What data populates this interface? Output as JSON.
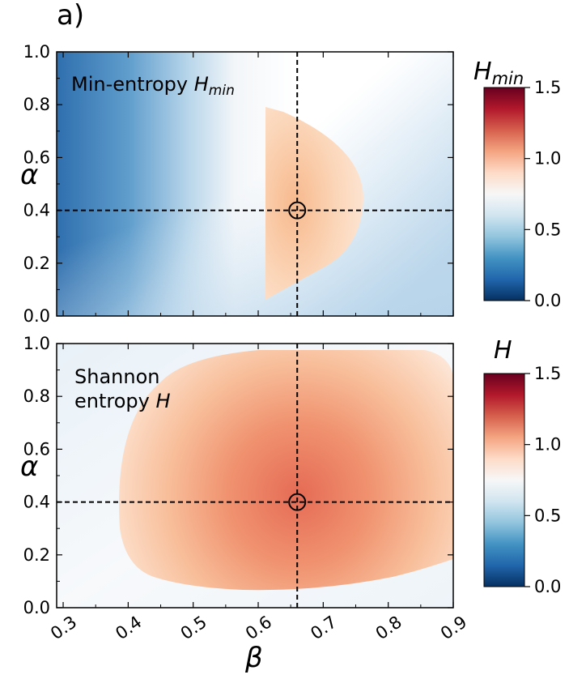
{
  "panel_label": "a)",
  "chart_data": [
    {
      "type": "heatmap",
      "title": "Min-entropy Hmin",
      "annotation": {
        "text": "Min-entropy ",
        "symbol": "H",
        "subscript": "min"
      },
      "xlabel": "β",
      "ylabel": "α",
      "xlim": [
        0.29,
        0.9
      ],
      "ylim": [
        0.0,
        1.0
      ],
      "xticks": [
        0.3,
        0.4,
        0.5,
        0.6,
        0.7,
        0.8,
        0.9
      ],
      "xtick_labels": [
        "0.3",
        "0.4",
        "0.5",
        "0.6",
        "0.7",
        "0.8",
        "0.9"
      ],
      "yticks": [
        0.0,
        0.2,
        0.4,
        0.6,
        0.8,
        1.0
      ],
      "ytick_labels": [
        "0.0",
        "0.2",
        "0.4",
        "0.6",
        "0.8",
        "1.0"
      ],
      "xtick_labels_visible": false,
      "crosshair": {
        "beta": 0.66,
        "alpha": 0.4
      },
      "colormap": "RdBu_r",
      "colorbar": {
        "title": {
          "symbol": "H",
          "subscript": "min"
        },
        "range": [
          0.0,
          1.5
        ],
        "ticks": [
          0.0,
          0.5,
          1.0,
          1.5
        ],
        "tick_labels": [
          "0.0",
          "0.5",
          "1.0",
          "1.5"
        ]
      },
      "value_summary": "Values below 1.0 (blue, min about 0.2 at beta=0.3) except a half-disc region beta 0.61-0.76, alpha 0.05-0.78 with values about 1.1; zero-ish near edges"
    },
    {
      "type": "heatmap",
      "title": "Shannon entropy H",
      "annotation": {
        "line1": "Shannon",
        "line2": "entropy ",
        "symbol": "H"
      },
      "xlabel": "β",
      "ylabel": "α",
      "xlim": [
        0.29,
        0.9
      ],
      "ylim": [
        0.0,
        1.0
      ],
      "xticks": [
        0.3,
        0.4,
        0.5,
        0.6,
        0.7,
        0.8,
        0.9
      ],
      "xtick_labels": [
        "0.3",
        "0.4",
        "0.5",
        "0.6",
        "0.7",
        "0.8",
        "0.9"
      ],
      "yticks": [
        0.0,
        0.2,
        0.4,
        0.6,
        0.8,
        1.0
      ],
      "ytick_labels": [
        "0.0",
        "0.2",
        "0.4",
        "0.6",
        "0.8",
        "1.0"
      ],
      "crosshair": {
        "beta": 0.66,
        "alpha": 0.4
      },
      "colormap": "RdBu_r",
      "colorbar": {
        "title": {
          "symbol": "H"
        },
        "range": [
          0.0,
          1.5
        ],
        "ticks": [
          0.0,
          0.5,
          1.0,
          1.5
        ],
        "tick_labels": [
          "0.0",
          "0.5",
          "1.0",
          "1.5"
        ]
      },
      "value_summary": "Values above 1.0 inside a rounded region beta 0.39-0.9, alpha 0.1-1.0, peaking about 1.35 near beta=0.66, alpha=0.4; below 1.0 near the edges"
    }
  ],
  "colors": {
    "cmap_stops": [
      "#053061",
      "#2166ac",
      "#4393c3",
      "#92c5de",
      "#d1e5f0",
      "#f7f7f7",
      "#fddbc7",
      "#f4a582",
      "#d6604d",
      "#b2182b",
      "#67001f"
    ],
    "crosshair": "#000000"
  }
}
